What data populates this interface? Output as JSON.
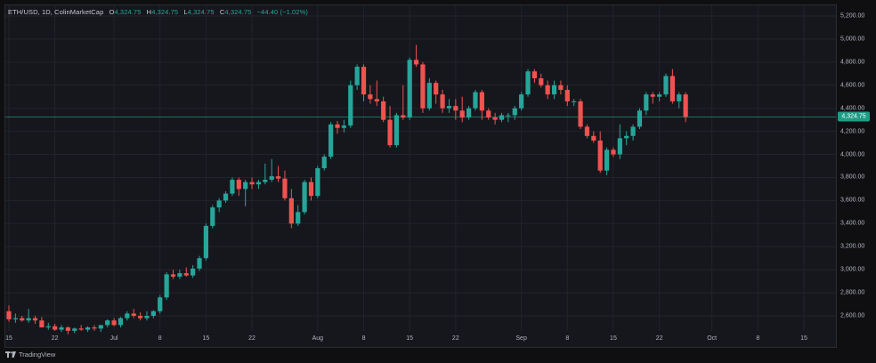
{
  "header": {
    "symbol": "ETH/USD",
    "interval": "1D",
    "source": "ColinMarketCap",
    "o_label": "O",
    "o_value": "4,324.75",
    "h_label": "H",
    "h_value": "4,324.75",
    "l_label": "L",
    "l_value": "4,324.75",
    "c_label": "C",
    "c_value": "4,324.75",
    "change": "−44.40 (−1.02%)"
  },
  "footer": {
    "brand": "TradingView",
    "logo_icon": "tradingview-logo-icon"
  },
  "colors": {
    "up": "#26a69a",
    "down": "#ef5350",
    "bg": "#16171d",
    "grid": "#22242b"
  },
  "chart_data": {
    "type": "candlestick",
    "symbol": "ETH/USD",
    "interval": "1D",
    "last_price": 4324.75,
    "last_price_label": "4,324.75",
    "ylim": [
      2450,
      5300
    ],
    "y_ticks": [
      2600,
      2800,
      3000,
      3200,
      3400,
      3600,
      3800,
      4000,
      4200,
      4400,
      4600,
      4800,
      5000,
      5200
    ],
    "y_tick_labels": [
      "2,600.00",
      "2,800.00",
      "3,000.00",
      "3,200.00",
      "3,400.00",
      "3,600.00",
      "3,800.00",
      "4,000.00",
      "4,200.00",
      "4,400.00",
      "4,600.00",
      "4,800.00",
      "5,000.00",
      "5,200.00"
    ],
    "x_ticks": [
      {
        "label": "15",
        "index": 0
      },
      {
        "label": "22",
        "index": 7
      },
      {
        "label": "Jul",
        "index": 16
      },
      {
        "label": "8",
        "index": 23
      },
      {
        "label": "15",
        "index": 30
      },
      {
        "label": "22",
        "index": 37
      },
      {
        "label": "Aug",
        "index": 47
      },
      {
        "label": "8",
        "index": 54
      },
      {
        "label": "15",
        "index": 61
      },
      {
        "label": "22",
        "index": 68
      },
      {
        "label": "Sep",
        "index": 78
      },
      {
        "label": "8",
        "index": 85
      },
      {
        "label": "15",
        "index": 92
      },
      {
        "label": "22",
        "index": 99
      },
      {
        "label": "Oct",
        "index": 107
      },
      {
        "label": "8",
        "index": 114
      },
      {
        "label": "15",
        "index": 121
      }
    ],
    "candles": [
      [
        2640,
        2690,
        2550,
        2570
      ],
      [
        2570,
        2620,
        2540,
        2580
      ],
      [
        2580,
        2600,
        2550,
        2560
      ],
      [
        2560,
        2660,
        2540,
        2580
      ],
      [
        2580,
        2600,
        2530,
        2560
      ],
      [
        2560,
        2590,
        2500,
        2500
      ],
      [
        2500,
        2540,
        2480,
        2510
      ],
      [
        2510,
        2530,
        2470,
        2480
      ],
      [
        2480,
        2520,
        2460,
        2500
      ],
      [
        2500,
        2510,
        2440,
        2470
      ],
      [
        2470,
        2500,
        2450,
        2490
      ],
      [
        2490,
        2520,
        2470,
        2480
      ],
      [
        2480,
        2510,
        2460,
        2500
      ],
      [
        2500,
        2520,
        2470,
        2490
      ],
      [
        2490,
        2520,
        2460,
        2520
      ],
      [
        2520,
        2570,
        2500,
        2560
      ],
      [
        2560,
        2580,
        2510,
        2520
      ],
      [
        2520,
        2590,
        2500,
        2580
      ],
      [
        2580,
        2640,
        2560,
        2620
      ],
      [
        2620,
        2660,
        2580,
        2600
      ],
      [
        2600,
        2630,
        2560,
        2580
      ],
      [
        2580,
        2640,
        2560,
        2600
      ],
      [
        2600,
        2650,
        2580,
        2640
      ],
      [
        2640,
        2780,
        2620,
        2760
      ],
      [
        2760,
        2980,
        2740,
        2960
      ],
      [
        2960,
        3000,
        2920,
        2940
      ],
      [
        2940,
        3000,
        2920,
        2970
      ],
      [
        2970,
        3020,
        2940,
        2950
      ],
      [
        2950,
        3040,
        2930,
        3010
      ],
      [
        3010,
        3120,
        2990,
        3100
      ],
      [
        3100,
        3400,
        3080,
        3380
      ],
      [
        3380,
        3560,
        3360,
        3540
      ],
      [
        3540,
        3620,
        3500,
        3600
      ],
      [
        3600,
        3680,
        3580,
        3660
      ],
      [
        3660,
        3800,
        3640,
        3780
      ],
      [
        3780,
        3800,
        3640,
        3700
      ],
      [
        3700,
        3780,
        3550,
        3760
      ],
      [
        3760,
        3800,
        3700,
        3740
      ],
      [
        3740,
        3780,
        3700,
        3760
      ],
      [
        3760,
        3920,
        3740,
        3780
      ],
      [
        3780,
        3960,
        3760,
        3810
      ],
      [
        3810,
        3900,
        3760,
        3790
      ],
      [
        3790,
        3860,
        3600,
        3620
      ],
      [
        3620,
        3700,
        3360,
        3400
      ],
      [
        3400,
        3560,
        3380,
        3500
      ],
      [
        3500,
        3780,
        3480,
        3760
      ],
      [
        3760,
        3800,
        3600,
        3640
      ],
      [
        3640,
        3900,
        3620,
        3880
      ],
      [
        3880,
        4000,
        3860,
        3980
      ],
      [
        3980,
        4280,
        3960,
        4260
      ],
      [
        4260,
        4290,
        4180,
        4230
      ],
      [
        4230,
        4300,
        4190,
        4250
      ],
      [
        4250,
        4640,
        4230,
        4600
      ],
      [
        4600,
        4780,
        4560,
        4760
      ],
      [
        4760,
        4780,
        4460,
        4520
      ],
      [
        4520,
        4600,
        4440,
        4480
      ],
      [
        4480,
        4640,
        4420,
        4460
      ],
      [
        4460,
        4500,
        4280,
        4300
      ],
      [
        4300,
        4420,
        4060,
        4080
      ],
      [
        4080,
        4360,
        4060,
        4340
      ],
      [
        4340,
        4600,
        4300,
        4320
      ],
      [
        4320,
        4840,
        4300,
        4820
      ],
      [
        4820,
        4950,
        4760,
        4780
      ],
      [
        4780,
        4800,
        4360,
        4400
      ],
      [
        4400,
        4660,
        4380,
        4620
      ],
      [
        4620,
        4640,
        4440,
        4520
      ],
      [
        4520,
        4560,
        4360,
        4400
      ],
      [
        4400,
        4480,
        4360,
        4420
      ],
      [
        4420,
        4480,
        4300,
        4380
      ],
      [
        4380,
        4500,
        4280,
        4320
      ],
      [
        4320,
        4420,
        4300,
        4400
      ],
      [
        4400,
        4560,
        4380,
        4540
      ],
      [
        4540,
        4560,
        4300,
        4380
      ],
      [
        4380,
        4400,
        4300,
        4320
      ],
      [
        4320,
        4360,
        4260,
        4300
      ],
      [
        4300,
        4360,
        4280,
        4340
      ],
      [
        4340,
        4360,
        4280,
        4340
      ],
      [
        4340,
        4420,
        4300,
        4400
      ],
      [
        4400,
        4540,
        4380,
        4520
      ],
      [
        4520,
        4740,
        4500,
        4720
      ],
      [
        4720,
        4740,
        4620,
        4660
      ],
      [
        4660,
        4700,
        4580,
        4600
      ],
      [
        4600,
        4640,
        4480,
        4520
      ],
      [
        4520,
        4640,
        4480,
        4600
      ],
      [
        4600,
        4640,
        4520,
        4560
      ],
      [
        4560,
        4600,
        4420,
        4460
      ],
      [
        4460,
        4480,
        4420,
        4460
      ],
      [
        4460,
        4480,
        4220,
        4240
      ],
      [
        4240,
        4260,
        4140,
        4160
      ],
      [
        4160,
        4200,
        4100,
        4120
      ],
      [
        4120,
        4200,
        3840,
        3860
      ],
      [
        3860,
        4060,
        3820,
        4040
      ],
      [
        4040,
        4060,
        3980,
        4000
      ],
      [
        4000,
        4260,
        3960,
        4140
      ],
      [
        4140,
        4200,
        4080,
        4160
      ],
      [
        4160,
        4260,
        4120,
        4240
      ],
      [
        4240,
        4400,
        4220,
        4380
      ],
      [
        4380,
        4540,
        4340,
        4520
      ],
      [
        4520,
        4540,
        4440,
        4500
      ],
      [
        4500,
        4540,
        4460,
        4520
      ],
      [
        4520,
        4700,
        4500,
        4680
      ],
      [
        4680,
        4740,
        4440,
        4460
      ],
      [
        4460,
        4540,
        4400,
        4520
      ],
      [
        4520,
        4540,
        4280,
        4324.75
      ]
    ]
  }
}
